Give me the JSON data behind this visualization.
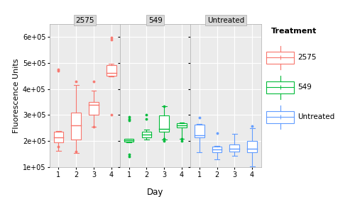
{
  "ylabel": "Fluorescence Units",
  "xlabel": "Day",
  "ylim": [
    100000.0,
    650000.0
  ],
  "yticks": [
    100000.0,
    200000.0,
    300000.0,
    400000.0,
    500000.0,
    600000.0
  ],
  "ytick_labels": [
    "1e+05",
    "2e+05",
    "3e+05",
    "4e+05",
    "5e+05",
    "6e+05"
  ],
  "days": [
    1,
    2,
    3,
    4
  ],
  "panels": [
    "2575",
    "549",
    "Untreated"
  ],
  "panel_colors": [
    "#F8766D",
    "#00BA38",
    "#619CFF"
  ],
  "legend_title": "Treatment",
  "legend_entries": [
    "2575",
    "549",
    "Untreated"
  ],
  "background_color": "#ffffff",
  "panel_bg_color": "#ebebeb",
  "grid_color": "#ffffff",
  "strip_bg_color": "#d9d9d9",
  "data_2575": {
    "day1": {
      "q1": 195000,
      "median": 215000,
      "q3": 235000,
      "whisker_low": 162000,
      "whisker_high": 240000,
      "outliers_hi": [
        470000,
        474000
      ],
      "outliers_lo": [
        178000
      ]
    },
    "day2": {
      "q1": 205000,
      "median": 260000,
      "q3": 310000,
      "whisker_low": 155000,
      "whisker_high": 415000,
      "outliers_hi": [
        430000
      ],
      "outliers_lo": [
        160000
      ]
    },
    "day3": {
      "q1": 300000,
      "median": 340000,
      "q3": 350000,
      "whisker_low": 255000,
      "whisker_high": 395000,
      "outliers_hi": [
        430000
      ],
      "outliers_lo": [
        255000
      ]
    },
    "day4": {
      "q1": 450000,
      "median": 462000,
      "q3": 492000,
      "whisker_low": 448000,
      "whisker_high": 498000,
      "outliers_hi": [
        590000,
        597000
      ],
      "outliers_lo": [
        300000
      ]
    }
  },
  "data_549": {
    "day1": {
      "q1": 198000,
      "median": 203000,
      "q3": 208000,
      "whisker_low": 194000,
      "whisker_high": 210000,
      "outliers_hi": [
        280000,
        285000,
        292000
      ],
      "outliers_lo": [
        140000,
        148000
      ]
    },
    "day2": {
      "q1": 215000,
      "median": 225000,
      "q3": 237000,
      "whisker_low": 205000,
      "whisker_high": 245000,
      "outliers_hi": [
        285000,
        300000
      ],
      "outliers_lo": []
    },
    "day3": {
      "q1": 235000,
      "median": 248000,
      "q3": 298000,
      "whisker_low": 205000,
      "whisker_high": 335000,
      "outliers_hi": [
        335000
      ],
      "outliers_lo": [
        200000,
        210000
      ]
    },
    "day4": {
      "q1": 252000,
      "median": 261000,
      "q3": 270000,
      "whisker_low": 210000,
      "whisker_high": 272000,
      "outliers_hi": [],
      "outliers_lo": [
        200000,
        210000
      ]
    }
  },
  "data_untreated": {
    "day1": {
      "q1": 215000,
      "median": 222000,
      "q3": 262000,
      "whisker_low": 158000,
      "whisker_high": 265000,
      "outliers_hi": [
        290000
      ],
      "outliers_lo": []
    },
    "day2": {
      "q1": 158000,
      "median": 167000,
      "q3": 180000,
      "whisker_low": 130000,
      "whisker_high": 183000,
      "outliers_hi": [
        230000
      ],
      "outliers_lo": []
    },
    "day3": {
      "q1": 160000,
      "median": 172000,
      "q3": 188000,
      "whisker_low": 143000,
      "whisker_high": 228000,
      "outliers_hi": [],
      "outliers_lo": []
    },
    "day4": {
      "q1": 158000,
      "median": 172000,
      "q3": 202000,
      "whisker_low": 103000,
      "whisker_high": 250000,
      "outliers_hi": [
        257000
      ],
      "outliers_lo": []
    }
  }
}
